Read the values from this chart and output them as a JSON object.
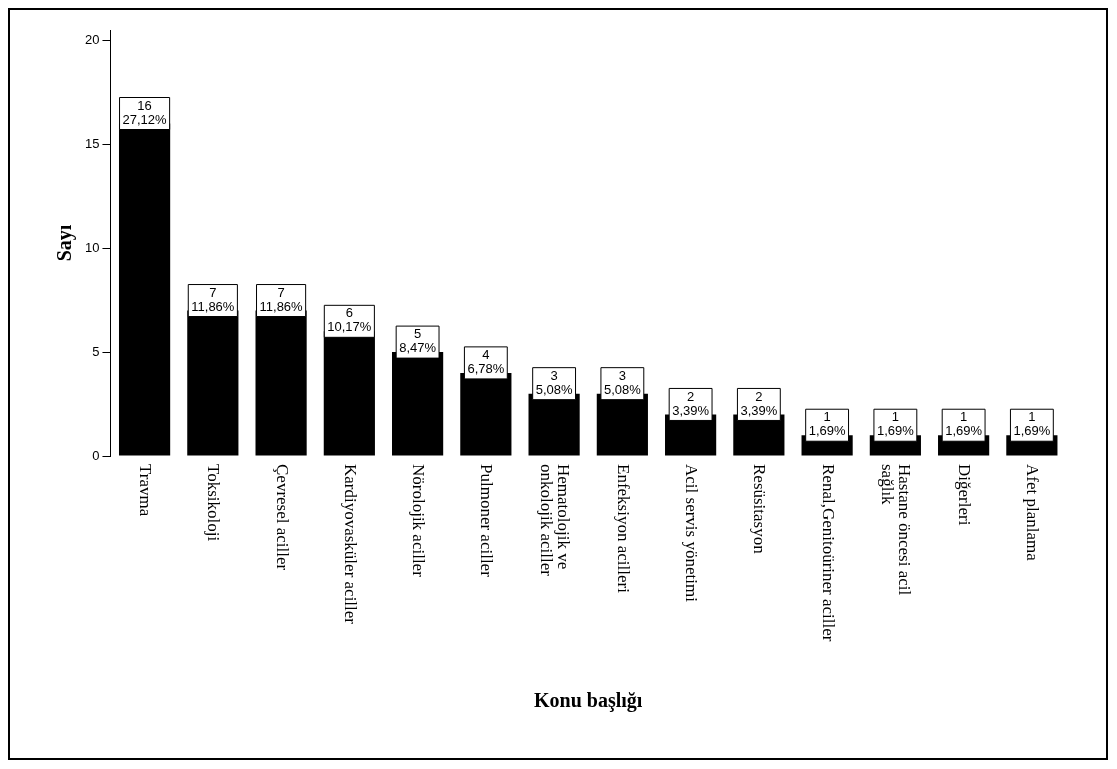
{
  "chart_data": {
    "type": "bar",
    "xlabel": "Konu başlığı",
    "ylabel": "Sayı",
    "categories": [
      "Travma",
      "Toksikoloji",
      "Çevresel aciller",
      "Kardiyovasküler aciller",
      "Nörolojik aciller",
      "Pulmoner aciller",
      "Hematolojik ve\nonkolojik aciller",
      "Enfeksiyon acilleri",
      "Acil servis yönetimi",
      "Resüsitasyon",
      "Renal,Genitoüriner aciller",
      "Hastane öncesi acil\nsağlık",
      "Diğerleri",
      "Afet planlama"
    ],
    "values": [
      16,
      7,
      7,
      6,
      5,
      4,
      3,
      3,
      2,
      2,
      1,
      1,
      1,
      1
    ],
    "color": "#000000",
    "value_labels": [
      "16\n27,12%",
      "7\n11,86%",
      "7\n11,86%",
      "6\n10,17%",
      "5\n8,47%",
      "4\n6,78%",
      "3\n5,08%",
      "3\n5,08%",
      "2\n3,39%",
      "2\n3,39%",
      "1\n1,69%",
      "1\n1,69%",
      "1\n1,69%",
      "1\n1,69%"
    ],
    "ylim": [
      0,
      20.5
    ],
    "yticks": [
      0,
      5,
      10,
      15,
      20
    ],
    "grid": false,
    "legend": false
  }
}
